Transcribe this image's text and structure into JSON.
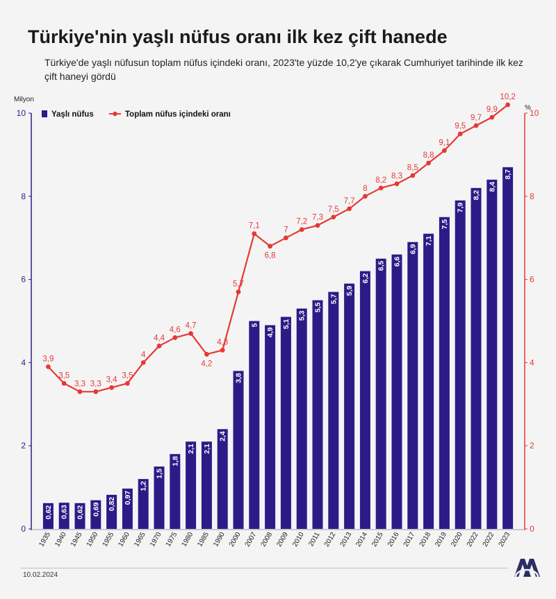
{
  "title": "Türkiye'nin yaşlı nüfus oranı ilk kez çift hanede",
  "subtitle": "Türkiye'de yaşlı nüfusun toplam nüfus içindeki oranı, 2023'te yüzde 10,2'ye çıkarak Cumhuriyet tarihinde ilk kez çift haneyi gördü",
  "date": "10.02.2024",
  "logo_label": "AA",
  "colors": {
    "bar": "#2e1a87",
    "line": "#e53935",
    "left_axis": "#2e1a87",
    "right_axis": "#e53935"
  },
  "chart_data": {
    "type": "bar",
    "x_labels": [
      "1935",
      "1940",
      "1945",
      "1950",
      "1955",
      "1960",
      "1965",
      "1970",
      "1975",
      "1980",
      "1985",
      "1990",
      "2000",
      "2007",
      "2008",
      "2009",
      "2010",
      "2011",
      "2012",
      "2013",
      "2014",
      "2015",
      "2016",
      "2017",
      "2018",
      "2019",
      "2020",
      "2022",
      "2022",
      "2023"
    ],
    "left_axis_unit": "Milyon",
    "right_axis_unit": "%",
    "left_ticks": [
      "0",
      "2",
      "4",
      "6",
      "8",
      "10"
    ],
    "right_ticks": [
      "0",
      "2",
      "4",
      "6",
      "8",
      "10"
    ],
    "ylim_left": [
      0,
      10
    ],
    "ylim_right": [
      0,
      10
    ],
    "series": [
      {
        "name": "Yaşlı nüfus",
        "kind": "bar",
        "axis": "left",
        "values": [
          0.62,
          0.63,
          0.62,
          0.69,
          0.82,
          0.97,
          1.2,
          1.5,
          1.8,
          2.1,
          2.1,
          2.4,
          3.8,
          5,
          4.9,
          5.1,
          5.3,
          5.5,
          5.7,
          5.9,
          6.2,
          6.5,
          6.6,
          6.9,
          7.1,
          7.5,
          7.9,
          8.2,
          8.4,
          8.7
        ],
        "labels": [
          "0,62",
          "0,63",
          "0,62",
          "0,69",
          "0,82",
          "0,97",
          "1,2",
          "1,5",
          "1,8",
          "2,1",
          "2,1",
          "2,4",
          "3,8",
          "5",
          "4,9",
          "5,1",
          "5,3",
          "5,5",
          "5,7",
          "5,9",
          "6,2",
          "6,5",
          "6,6",
          "6,9",
          "7,1",
          "7,5",
          "7,9",
          "8,2",
          "8,4",
          "8,7"
        ]
      },
      {
        "name": "Toplam nüfus içindeki oranı",
        "kind": "line",
        "axis": "right",
        "values": [
          3.9,
          3.5,
          3.3,
          3.3,
          3.4,
          3.5,
          4,
          4.4,
          4.6,
          4.7,
          4.2,
          4.3,
          5.7,
          7.1,
          6.8,
          7,
          7.2,
          7.3,
          7.5,
          7.7,
          8,
          8.2,
          8.3,
          8.5,
          8.8,
          9.1,
          9.5,
          9.7,
          9.9,
          10.2
        ],
        "labels": [
          "3,9",
          "3,5",
          "3,3",
          "3,3",
          "3,4",
          "3,5",
          "4",
          "4,4",
          "4,6",
          "4,7",
          "4,2",
          "4,3",
          "5,7",
          "7,1",
          "6,8",
          "7",
          "7,2",
          "7,3",
          "7,5",
          "7,7",
          "8",
          "8,2",
          "8,3",
          "8,5",
          "8,8",
          "9,1",
          "9,5",
          "9,7",
          "9,9",
          "10,2"
        ]
      }
    ]
  }
}
